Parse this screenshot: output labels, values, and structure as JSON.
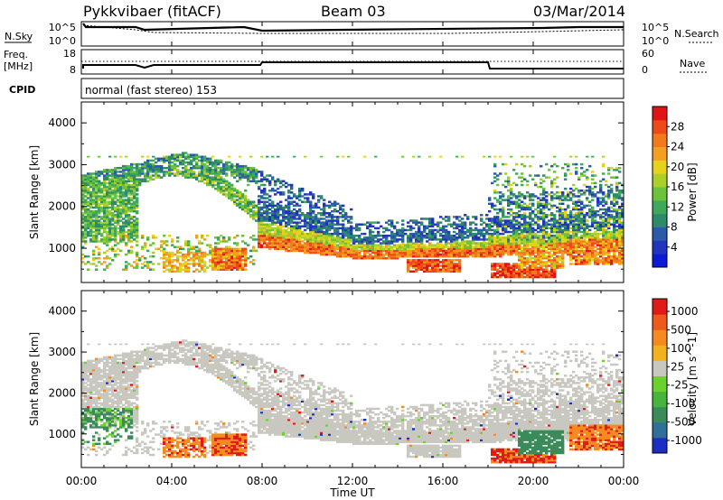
{
  "header": {
    "station": "Pykkvibaer (fitACF)",
    "beam": "Beam 03",
    "date": "03/Mar/2014"
  },
  "nsky_panel": {
    "left_label": "N.Sky",
    "left_ticks": [
      "10^5",
      "10^0"
    ],
    "right_label": "N.Search",
    "right_ticks": [
      "10^5",
      "10^0"
    ]
  },
  "freq_panel": {
    "left_label_1": "Freq.",
    "left_label_2": "[MHz]",
    "left_ticks": [
      "18",
      "8"
    ],
    "right_label": "Nave",
    "right_ticks": [
      "60",
      "0"
    ]
  },
  "cpid_panel": {
    "label": "CPID",
    "text": "normal (fast stereo) 153"
  },
  "x_axis": {
    "label": "Time UT",
    "ticks": [
      "00:00",
      "04:00",
      "08:00",
      "12:00",
      "16:00",
      "20:00",
      "00:00"
    ]
  },
  "chart_data": [
    {
      "type": "heatmap",
      "title": "",
      "xlabel": "Time UT",
      "ylabel": "Slant Range [km]",
      "x_range_hours": [
        0,
        24
      ],
      "ylim": [
        180,
        4500
      ],
      "y_ticks": [
        1000,
        2000,
        3000,
        4000
      ],
      "colorbar": {
        "label": "Power [dB]",
        "range": [
          0,
          32
        ],
        "ticks": [
          "4",
          "8",
          "12",
          "16",
          "20",
          "24",
          "28"
        ],
        "colors": [
          "#0b1bd8",
          "#2233bd",
          "#2a5aa8",
          "#2f8a6a",
          "#3ea95a",
          "#6cc23a",
          "#a9cf28",
          "#e6d21a",
          "#f3a020",
          "#f37a1c",
          "#ee4a18",
          "#e01414"
        ]
      }
    },
    {
      "type": "heatmap",
      "title": "",
      "xlabel": "Time UT",
      "ylabel": "Slant Range [km]",
      "x_range_hours": [
        0,
        24
      ],
      "ylim": [
        180,
        4500
      ],
      "y_ticks": [
        1000,
        2000,
        3000,
        4000
      ],
      "colorbar": {
        "label": "Velocity [m s^-1]",
        "ticks": [
          "1000",
          "500",
          "100",
          "25",
          "-25",
          "-100",
          "-500",
          "-1000"
        ],
        "colors": [
          "#1a2fc0",
          "#2f6f9a",
          "#3b8a5a",
          "#49b43c",
          "#6cd02e",
          "#c8c8c0",
          "#f2b21c",
          "#f58a1e",
          "#ee5a1c",
          "#e01a18"
        ]
      }
    }
  ]
}
